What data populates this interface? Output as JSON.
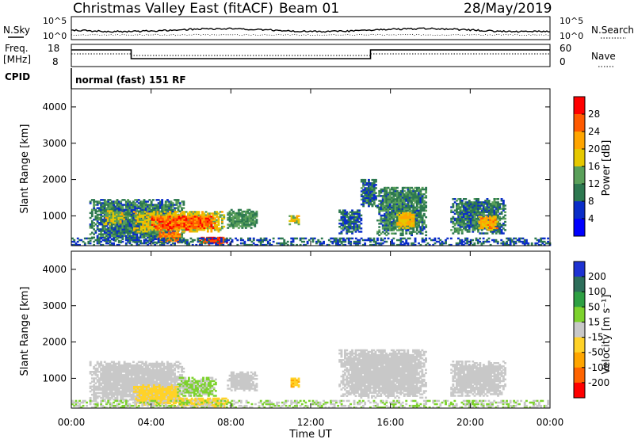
{
  "header": {
    "site_title": "Christmas Valley East (fitACF)",
    "beam_label": "Beam 01",
    "date": "28/May/2019"
  },
  "panels": {
    "nsky": {
      "label": "N.Sky",
      "ticks": [
        "10^5",
        "10^0"
      ],
      "right_label": "N.Search",
      "right_ticks": [
        "10^5",
        "10^0"
      ]
    },
    "freq": {
      "label_line1": "Freq.",
      "label_line2": "[MHz]",
      "ticks": [
        "18",
        "8"
      ],
      "right_label": "Nave",
      "right_ticks": [
        "60",
        "0"
      ]
    },
    "cpid": {
      "label": "CPID",
      "mode_text": "normal (fast) 151 RF"
    }
  },
  "axes": {
    "y_label": "Slant Range [km]",
    "y_ticks": [
      "4000",
      "3000",
      "2000",
      "1000"
    ],
    "x_label": "Time UT",
    "x_ticks": [
      "00:00",
      "04:00",
      "08:00",
      "12:00",
      "16:00",
      "20:00",
      "00:00"
    ]
  },
  "colorbars": {
    "power": {
      "label": "Power [dB]",
      "ticks": [
        "28",
        "24",
        "20",
        "16",
        "12",
        "8",
        "4"
      ],
      "colors": [
        "#ff0000",
        "#ff5a00",
        "#ffa500",
        "#e6c800",
        "#5aa05a",
        "#2d7850",
        "#0a2dc8",
        "#0000ff"
      ]
    },
    "velocity": {
      "label": "Velocity [m s⁻¹]",
      "ticks": [
        "200",
        "100",
        "50",
        "15",
        "-15",
        "-50",
        "-100",
        "-200"
      ],
      "colors": [
        "#1e32d2",
        "#2d6e5a",
        "#2ea043",
        "#7dd22d",
        "#c8c8c8",
        "#ffd228",
        "#ffa500",
        "#ff6400",
        "#ff0000"
      ]
    }
  },
  "chart_data": [
    {
      "type": "heatmap",
      "title": "Power",
      "xlabel": "Time UT",
      "ylabel": "Slant Range [km]",
      "xlim": [
        0,
        24
      ],
      "ylim": [
        180,
        4500
      ],
      "zlabel": "Power [dB]",
      "zlim": [
        0,
        32
      ],
      "regions": [
        {
          "t0": 0.9,
          "t1": 5.6,
          "r0": 250,
          "r1": 1450,
          "value": 10
        },
        {
          "t0": 1.6,
          "t1": 2.7,
          "r0": 750,
          "r1": 1150,
          "value": 17
        },
        {
          "t0": 3.1,
          "t1": 7.6,
          "r0": 550,
          "r1": 1100,
          "value": 18
        },
        {
          "t0": 4.0,
          "t1": 7.2,
          "r0": 600,
          "r1": 1000,
          "value": 26
        },
        {
          "t0": 4.3,
          "t1": 5.4,
          "r0": 250,
          "r1": 550,
          "value": 24
        },
        {
          "t0": 6.4,
          "t1": 7.8,
          "r0": 200,
          "r1": 400,
          "value": 28
        },
        {
          "t0": 7.8,
          "t1": 9.3,
          "r0": 650,
          "r1": 1150,
          "value": 12
        },
        {
          "t0": 10.9,
          "t1": 11.4,
          "r0": 750,
          "r1": 1000,
          "value": 18
        },
        {
          "t0": 13.4,
          "t1": 14.5,
          "r0": 500,
          "r1": 1150,
          "value": 9
        },
        {
          "t0": 14.5,
          "t1": 15.3,
          "r0": 1250,
          "r1": 2000,
          "value": 9
        },
        {
          "t0": 15.3,
          "t1": 17.8,
          "r0": 450,
          "r1": 1800,
          "value": 11
        },
        {
          "t0": 16.3,
          "t1": 17.2,
          "r0": 650,
          "r1": 1100,
          "value": 20
        },
        {
          "t0": 19.0,
          "t1": 21.7,
          "r0": 500,
          "r1": 1450,
          "value": 10
        },
        {
          "t0": 20.4,
          "t1": 21.3,
          "r0": 600,
          "r1": 1000,
          "value": 21
        },
        {
          "t0": 0.0,
          "t1": 24.0,
          "r0": 180,
          "r1": 380,
          "value": 8
        }
      ]
    },
    {
      "type": "heatmap",
      "title": "Velocity",
      "xlabel": "Time UT",
      "ylabel": "Slant Range [km]",
      "xlim": [
        0,
        24
      ],
      "ylim": [
        180,
        4500
      ],
      "zlabel": "Velocity [m s⁻¹]",
      "zlim": [
        -200,
        200
      ],
      "regions": [
        {
          "t0": 0.9,
          "t1": 5.6,
          "r0": 350,
          "r1": 1450,
          "value": 0
        },
        {
          "t0": 3.1,
          "t1": 5.4,
          "r0": 250,
          "r1": 800,
          "value": -40
        },
        {
          "t0": 5.3,
          "t1": 7.2,
          "r0": 500,
          "r1": 1000,
          "value": 30
        },
        {
          "t0": 5.0,
          "t1": 7.8,
          "r0": 200,
          "r1": 450,
          "value": -40
        },
        {
          "t0": 7.8,
          "t1": 9.3,
          "r0": 650,
          "r1": 1150,
          "value": 0
        },
        {
          "t0": 10.9,
          "t1": 11.4,
          "r0": 750,
          "r1": 1000,
          "value": -60
        },
        {
          "t0": 13.4,
          "t1": 17.8,
          "r0": 450,
          "r1": 1800,
          "value": 0
        },
        {
          "t0": 19.0,
          "t1": 21.7,
          "r0": 500,
          "r1": 1450,
          "value": 0
        },
        {
          "t0": 0.0,
          "t1": 24.0,
          "r0": 180,
          "r1": 380,
          "value": 20
        }
      ]
    }
  ]
}
